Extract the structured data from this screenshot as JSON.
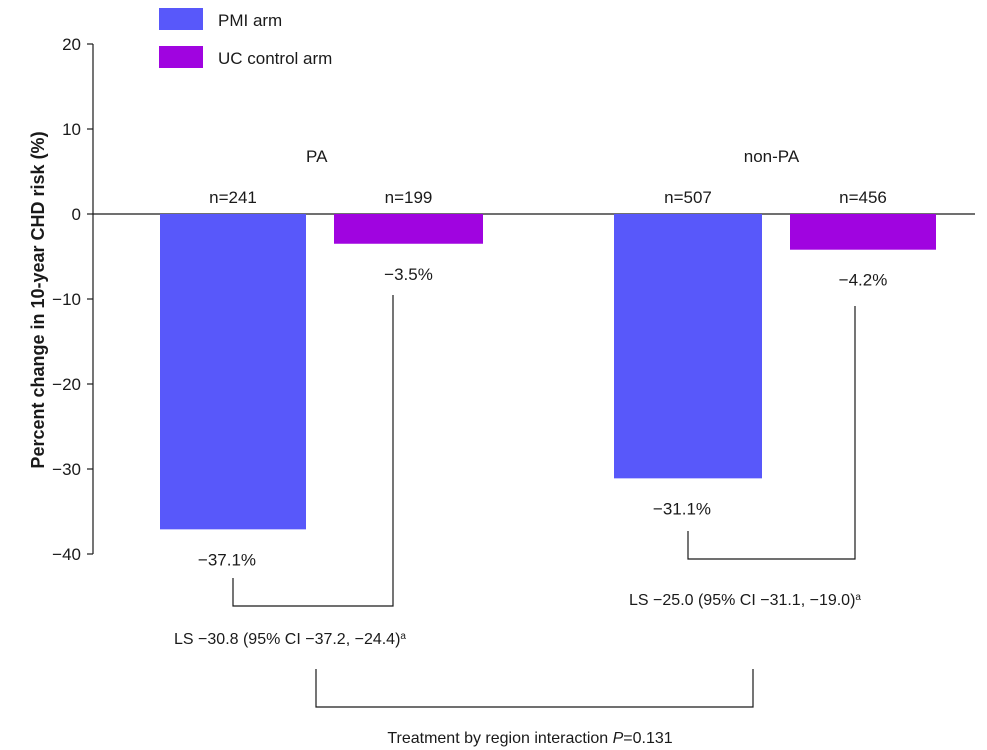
{
  "chart_data": {
    "type": "bar",
    "categories": [
      "PA",
      "non-PA"
    ],
    "series": [
      {
        "name": "PMI arm",
        "color": "#5858fa",
        "values": [
          -37.1,
          -31.1
        ],
        "value_labels": [
          "−37.1%",
          "−31.1%"
        ],
        "n_labels": [
          "n=241",
          "n=507"
        ]
      },
      {
        "name": "UC control arm",
        "color": "#a004e0",
        "values": [
          -3.5,
          -4.2
        ],
        "value_labels": [
          "−3.5%",
          "−4.2%"
        ],
        "n_labels": [
          "n=199",
          "n=456"
        ]
      }
    ],
    "ylabel": "Percent change in 10-year CHD risk  (%)",
    "ylim": [
      -43,
      20
    ],
    "yticks": [
      20,
      10,
      0,
      -10,
      -20,
      -30,
      -40
    ],
    "ytick_labels": [
      "20",
      "10",
      "0",
      "−10",
      "−20",
      "−30",
      "−40"
    ],
    "legend_position": "top-left",
    "grid": false,
    "annotations": {
      "group_comparisons": [
        "LS −30.8 (95% CI −37.2, −24.4)",
        "LS −25.0 (95% CI −31.1, −19.0)"
      ],
      "footnote_marker": "a",
      "interaction_prefix": "Treatment by region interaction ",
      "interaction_p": "P",
      "interaction_value": "=0.131"
    }
  }
}
